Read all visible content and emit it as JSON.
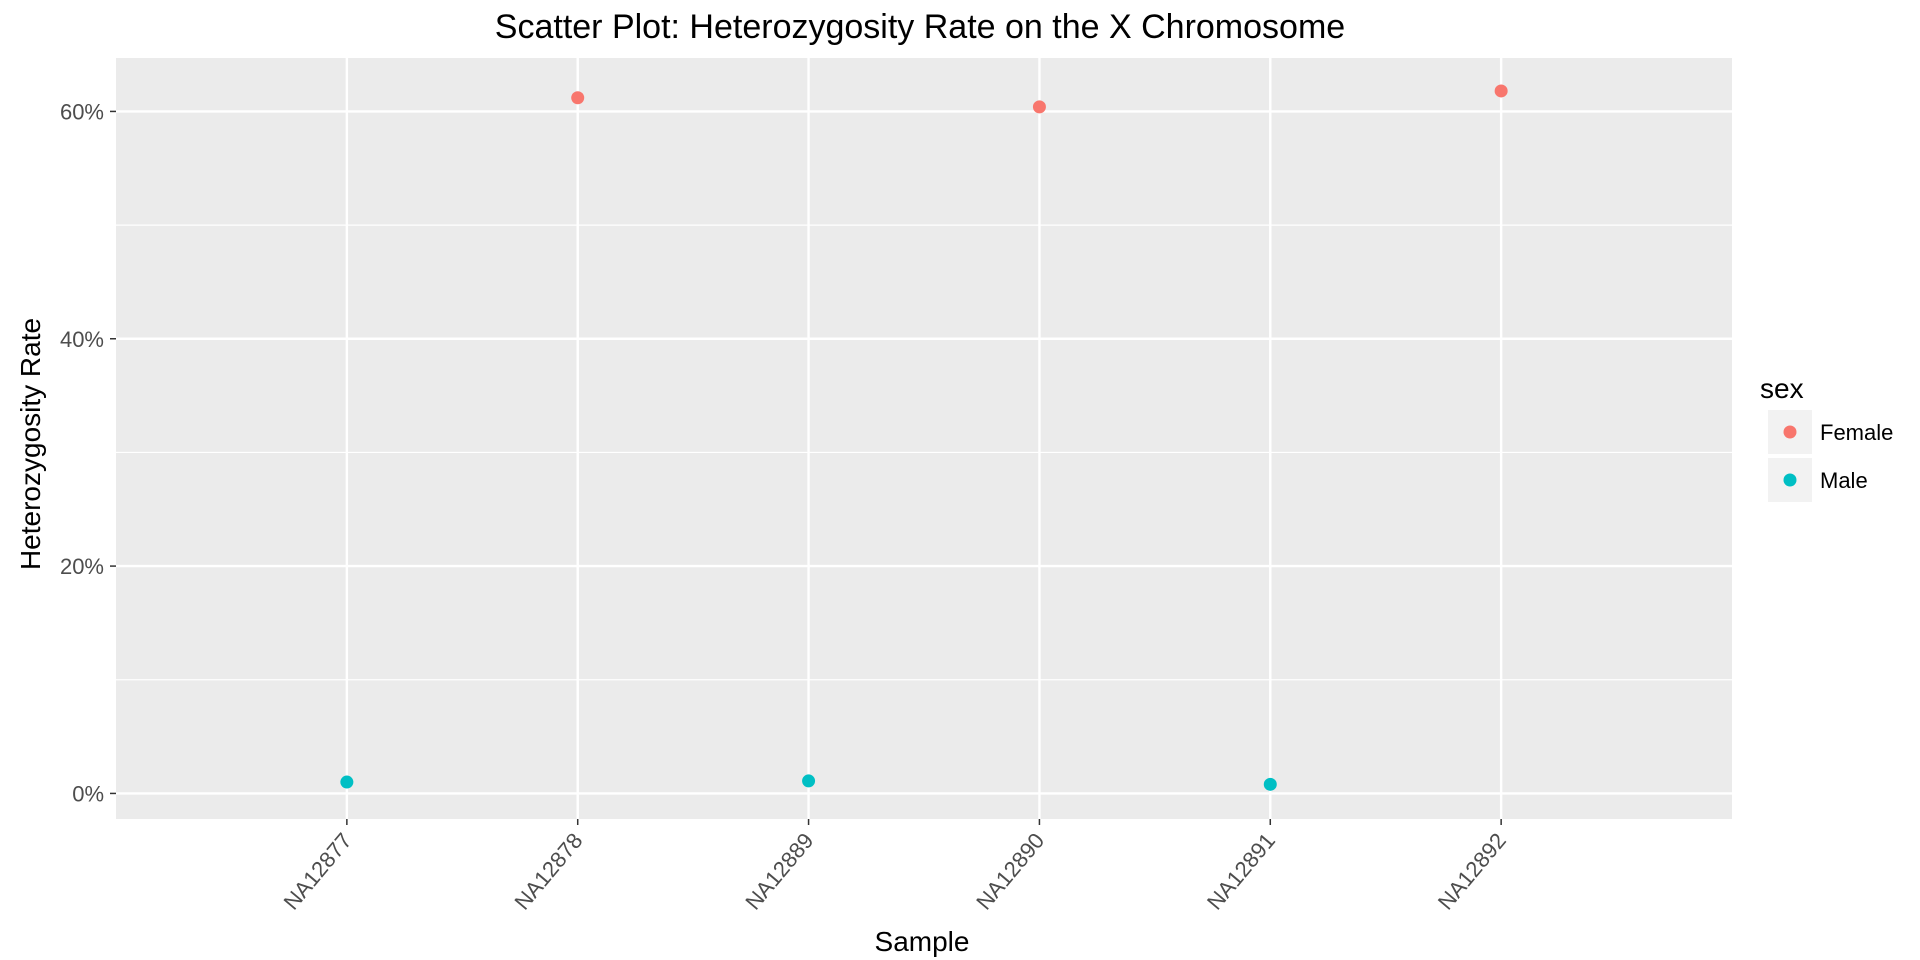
{
  "chart_data": {
    "type": "scatter",
    "title": "Scatter Plot: Heterozygosity Rate on the X Chromosome",
    "xlabel": "Sample",
    "ylabel": "Heterozygosity Rate",
    "categories": [
      "NA12877",
      "NA12878",
      "NA12889",
      "NA12890",
      "NA12891",
      "NA12892"
    ],
    "y_ticks": [
      0,
      0.2,
      0.4,
      0.6
    ],
    "y_tick_labels": [
      "0%",
      "20%",
      "40%",
      "60%"
    ],
    "ylim": [
      -0.0225,
      0.647
    ],
    "grid": true,
    "legend": {
      "title": "sex",
      "position": "right",
      "entries": [
        {
          "label": "Female",
          "color": "#F8766D"
        },
        {
          "label": "Male",
          "color": "#00BFC4"
        }
      ]
    },
    "series": [
      {
        "name": "Female",
        "color": "#F8766D",
        "points": [
          {
            "x": "NA12878",
            "y": 0.612
          },
          {
            "x": "NA12890",
            "y": 0.604
          },
          {
            "x": "NA12892",
            "y": 0.618
          }
        ]
      },
      {
        "name": "Male",
        "color": "#00BFC4",
        "points": [
          {
            "x": "NA12877",
            "y": 0.01
          },
          {
            "x": "NA12889",
            "y": 0.011
          },
          {
            "x": "NA12891",
            "y": 0.008
          }
        ]
      }
    ]
  }
}
